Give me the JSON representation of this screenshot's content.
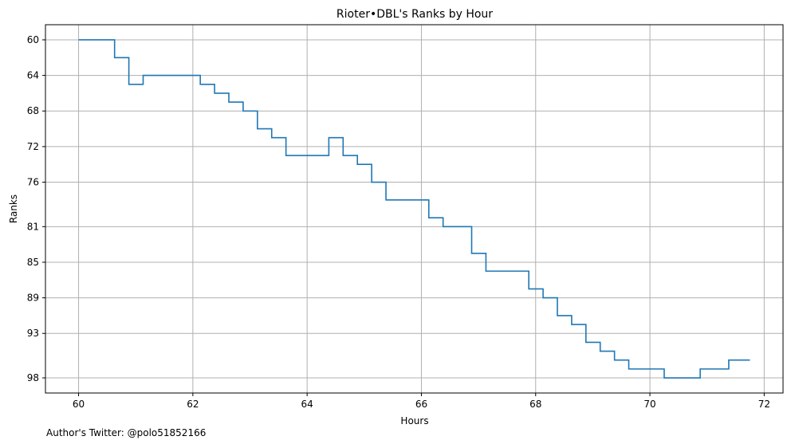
{
  "chart_data": {
    "type": "line",
    "drawstyle": "step",
    "title": "Rioter•DBL's Ranks by Hour",
    "xlabel": "Hours",
    "ylabel": "Ranks",
    "x_ticks": [
      60,
      62,
      64,
      66,
      68,
      70,
      72
    ],
    "y_ticks": [
      60,
      64,
      68,
      72,
      76,
      81,
      85,
      89,
      93,
      98
    ],
    "y_inverted": true,
    "grid": true,
    "line_color": "#1f77b4",
    "series": [
      {
        "x": [
          60.0,
          60.63,
          60.88,
          61.13,
          62.13,
          62.38,
          62.63,
          62.88,
          63.13,
          63.38,
          63.63,
          64.38,
          64.63,
          64.88,
          65.13,
          65.38,
          66.13,
          66.38,
          66.88,
          67.13,
          67.88,
          68.13,
          68.38,
          68.63,
          68.88,
          69.13,
          69.38,
          69.63,
          70.25,
          70.88,
          71.38,
          71.75
        ],
        "y": [
          60,
          62,
          65,
          64,
          65,
          66,
          67,
          68,
          70,
          71,
          73,
          71,
          73,
          74,
          76,
          78,
          80,
          81,
          84,
          86,
          88,
          89,
          91,
          92,
          94,
          95,
          96,
          97,
          98,
          97,
          96,
          96
        ]
      }
    ]
  },
  "footer": {
    "note": "Author's Twitter: @polo51852166"
  }
}
